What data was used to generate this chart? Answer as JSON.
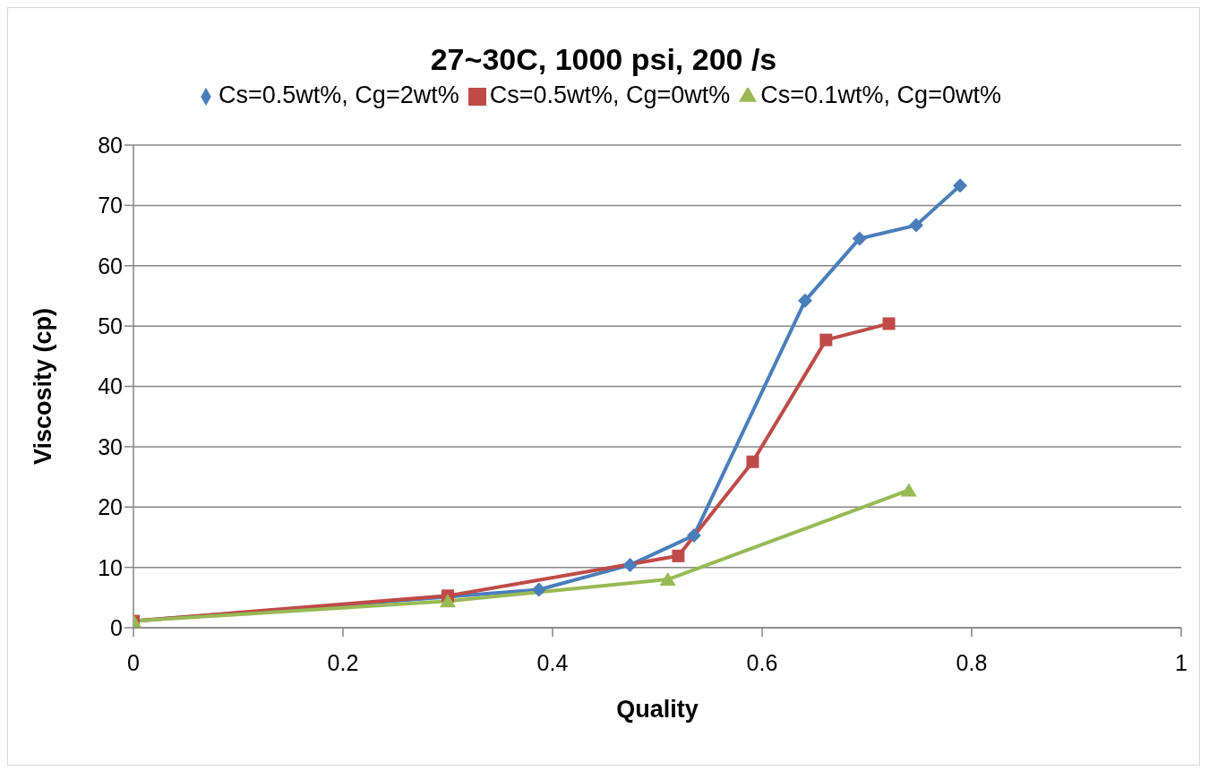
{
  "chart_data": {
    "type": "line",
    "title": "27~30C, 1000 psi, 200 /s",
    "xlabel": "Quality",
    "ylabel": "Viscosity  (cp)",
    "xlim": [
      0,
      1
    ],
    "xticks": [
      0,
      0.2,
      0.4,
      0.6,
      0.8,
      1
    ],
    "ylim": [
      0,
      80
    ],
    "yticks": [
      0,
      10,
      20,
      30,
      40,
      50,
      60,
      70,
      80
    ],
    "grid": "y",
    "legend": "top",
    "series": [
      {
        "name": "Cs=0.5wt%, Cg=2wt%",
        "color": "#4a7ebb",
        "marker": "diamond",
        "x": [
          0,
          0.3,
          0.387,
          0.474,
          0.535,
          0.641,
          0.693,
          0.747,
          0.789
        ],
        "values": [
          1.1,
          null,
          6.3,
          10.4,
          15.3,
          54.2,
          64.5,
          66.7,
          73.3
        ]
      },
      {
        "name": "Cs=0.5wt%, Cg=0wt%",
        "color": "#be4b48",
        "marker": "square",
        "x": [
          0,
          0.3,
          0.52,
          0.591,
          0.661,
          0.721
        ],
        "values": [
          1.1,
          5.3,
          11.9,
          27.5,
          47.7,
          50.4
        ]
      },
      {
        "name": "Cs=0.1wt%, Cg=0wt%",
        "color": "#98b954",
        "marker": "triangle",
        "x": [
          0,
          0.3,
          0.51,
          0.74
        ],
        "values": [
          1.1,
          4.4,
          8.0,
          22.8
        ]
      }
    ]
  }
}
